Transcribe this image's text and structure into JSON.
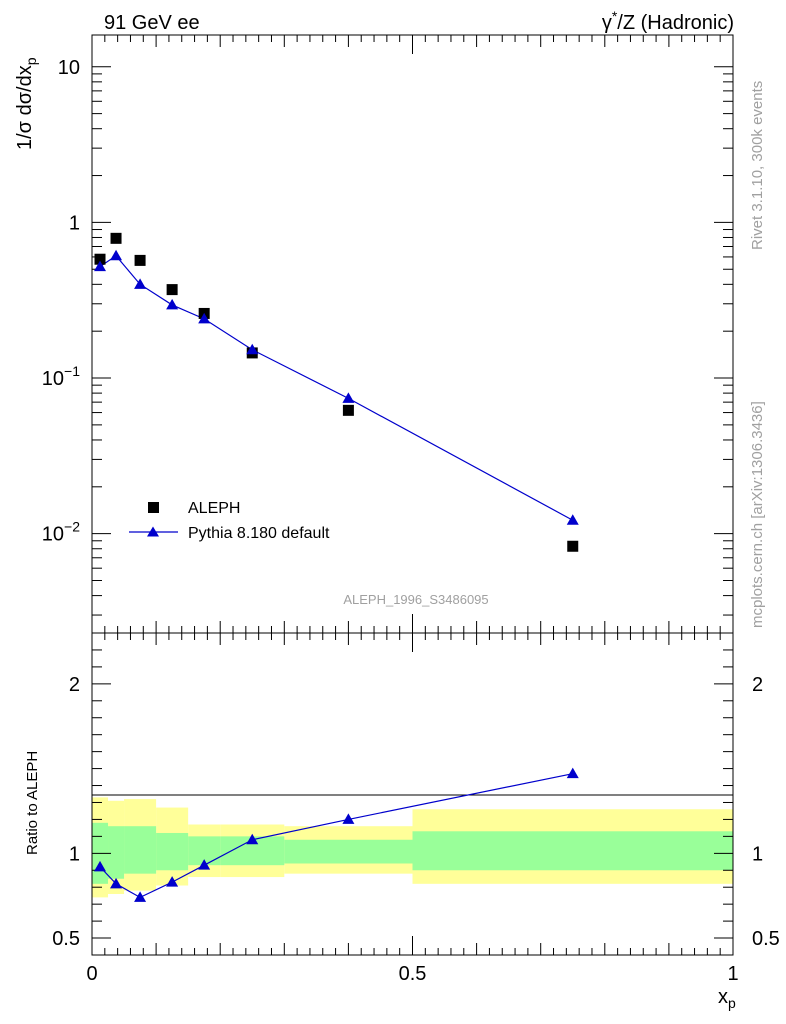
{
  "header": {
    "left": "91 GeV ee",
    "right_main": "Z (Hadronic)",
    "right_gamma": "γ",
    "right_star": "*",
    "right_slash": "/"
  },
  "side": {
    "rivet": "Rivet 3.1.10,  300k events",
    "mcplots": "mcplots.cern.ch [arXiv:1306.3436]"
  },
  "watermark": "ALEPH_1996_S3486095",
  "axes": {
    "ylabel_top": "1/σ dσ/dx",
    "ylabel_top_sub": "p",
    "ylabel_bottom": "Ratio to ALEPH",
    "xlabel": "x",
    "xlabel_sub": "p"
  },
  "legend": {
    "data_label": "ALEPH",
    "mc_label": "Pythia 8.180 default"
  },
  "colors": {
    "mc": "#0000cc",
    "data": "#000000",
    "band_inner": "#99ff99",
    "band_outer": "#ffff99"
  },
  "chart_data": [
    {
      "type": "scatter",
      "title": "1/σ dσ/dx_p",
      "xlabel": "x_p",
      "ylabel": "1/σ dσ/dx_p",
      "yscale": "log",
      "xlim": [
        0,
        1
      ],
      "ylim": [
        0.0023,
        16
      ],
      "yticks": [
        "10^-2",
        "10^-1",
        "1",
        "10"
      ],
      "series": [
        {
          "name": "ALEPH",
          "marker": "square",
          "x": [
            0.0125,
            0.0375,
            0.075,
            0.125,
            0.175,
            0.25,
            0.4,
            0.75
          ],
          "y": [
            0.58,
            0.79,
            0.57,
            0.37,
            0.26,
            0.145,
            0.062,
            0.0083
          ]
        },
        {
          "name": "Pythia 8.180 default",
          "marker": "triangle",
          "x": [
            0.0125,
            0.0375,
            0.075,
            0.125,
            0.175,
            0.25,
            0.4,
            0.75
          ],
          "y": [
            0.52,
            0.61,
            0.4,
            0.295,
            0.24,
            0.152,
            0.074,
            0.0122
          ]
        }
      ]
    },
    {
      "type": "line",
      "title": "Ratio to ALEPH",
      "xlabel": "x_p",
      "ylabel": "Ratio to ALEPH",
      "xlim": [
        0,
        1
      ],
      "ylim": [
        0.4,
        2.3
      ],
      "xticks": [
        "0",
        "0.5",
        "1"
      ],
      "yticks": [
        "0.5",
        "1",
        "2"
      ],
      "series": [
        {
          "name": "Pythia 8.180 default / ALEPH",
          "x": [
            0.0125,
            0.0375,
            0.075,
            0.125,
            0.175,
            0.25,
            0.4,
            0.75
          ],
          "y": [
            0.92,
            0.82,
            0.74,
            0.83,
            0.93,
            1.08,
            1.2,
            1.47
          ]
        }
      ],
      "bands": {
        "bin_edges": [
          0,
          0.025,
          0.05,
          0.1,
          0.15,
          0.2,
          0.3,
          0.5,
          1.0
        ],
        "inner_low": [
          0.82,
          0.85,
          0.88,
          0.9,
          0.93,
          0.93,
          0.94,
          0.9
        ],
        "inner_high": [
          1.18,
          1.16,
          1.16,
          1.12,
          1.1,
          1.1,
          1.08,
          1.13
        ],
        "outer_low": [
          0.74,
          0.76,
          0.78,
          0.81,
          0.86,
          0.86,
          0.88,
          0.82
        ],
        "outer_high": [
          1.33,
          1.31,
          1.32,
          1.27,
          1.17,
          1.17,
          1.16,
          1.26
        ]
      }
    }
  ]
}
